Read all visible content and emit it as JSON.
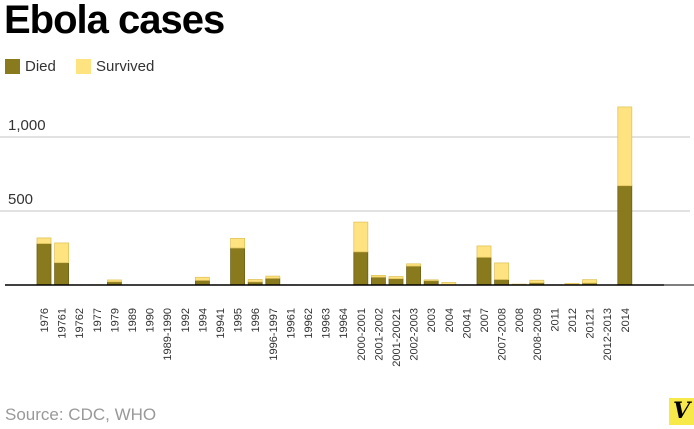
{
  "chart_data": {
    "type": "bar",
    "stacked": true,
    "title": "Ebola cases",
    "categories": [
      "1976",
      "19761",
      "19762",
      "1977",
      "1979",
      "1989",
      "1990",
      "1989-1990",
      "1992",
      "1994",
      "19941",
      "1995",
      "1996",
      "1996-1997",
      "19961",
      "19962",
      "19963",
      "19964",
      "2000-2001",
      "2001-2002",
      "2001-20021",
      "2002-2003",
      "2003",
      "2004",
      "20041",
      "2007",
      "2007-2008",
      "2008",
      "2008-2009",
      "2011",
      "2012",
      "20121",
      "2012-2013",
      "2014"
    ],
    "series": [
      {
        "name": "Died",
        "color": "#8a7a1e",
        "values": [
          280,
          151,
          0,
          1,
          22,
          0,
          0,
          0,
          0,
          31,
          0,
          250,
          21,
          45,
          1,
          0,
          0,
          0,
          224,
          53,
          43,
          128,
          29,
          0,
          0,
          187,
          37,
          0,
          15,
          1,
          4,
          13,
          0,
          671
        ]
      },
      {
        "name": "Survived",
        "color": "#ffe380",
        "values": [
          38,
          133,
          1,
          0,
          12,
          0,
          0,
          0,
          0,
          21,
          1,
          65,
          16,
          15,
          0,
          0,
          0,
          0,
          201,
          12,
          14,
          15,
          6,
          17,
          1,
          77,
          112,
          6,
          17,
          0,
          7,
          23,
          0,
          532
        ]
      }
    ],
    "yticks": [
      {
        "value": 500,
        "label": "500"
      },
      {
        "value": 1000,
        "label": "1,000"
      }
    ],
    "ylim": [
      0,
      1250
    ],
    "grid": true,
    "legend": "top-left",
    "xlabel": "",
    "ylabel": ""
  },
  "legend": {
    "died": "Died",
    "survived": "Survived"
  },
  "source": "Source: CDC, WHO",
  "logo": "V"
}
